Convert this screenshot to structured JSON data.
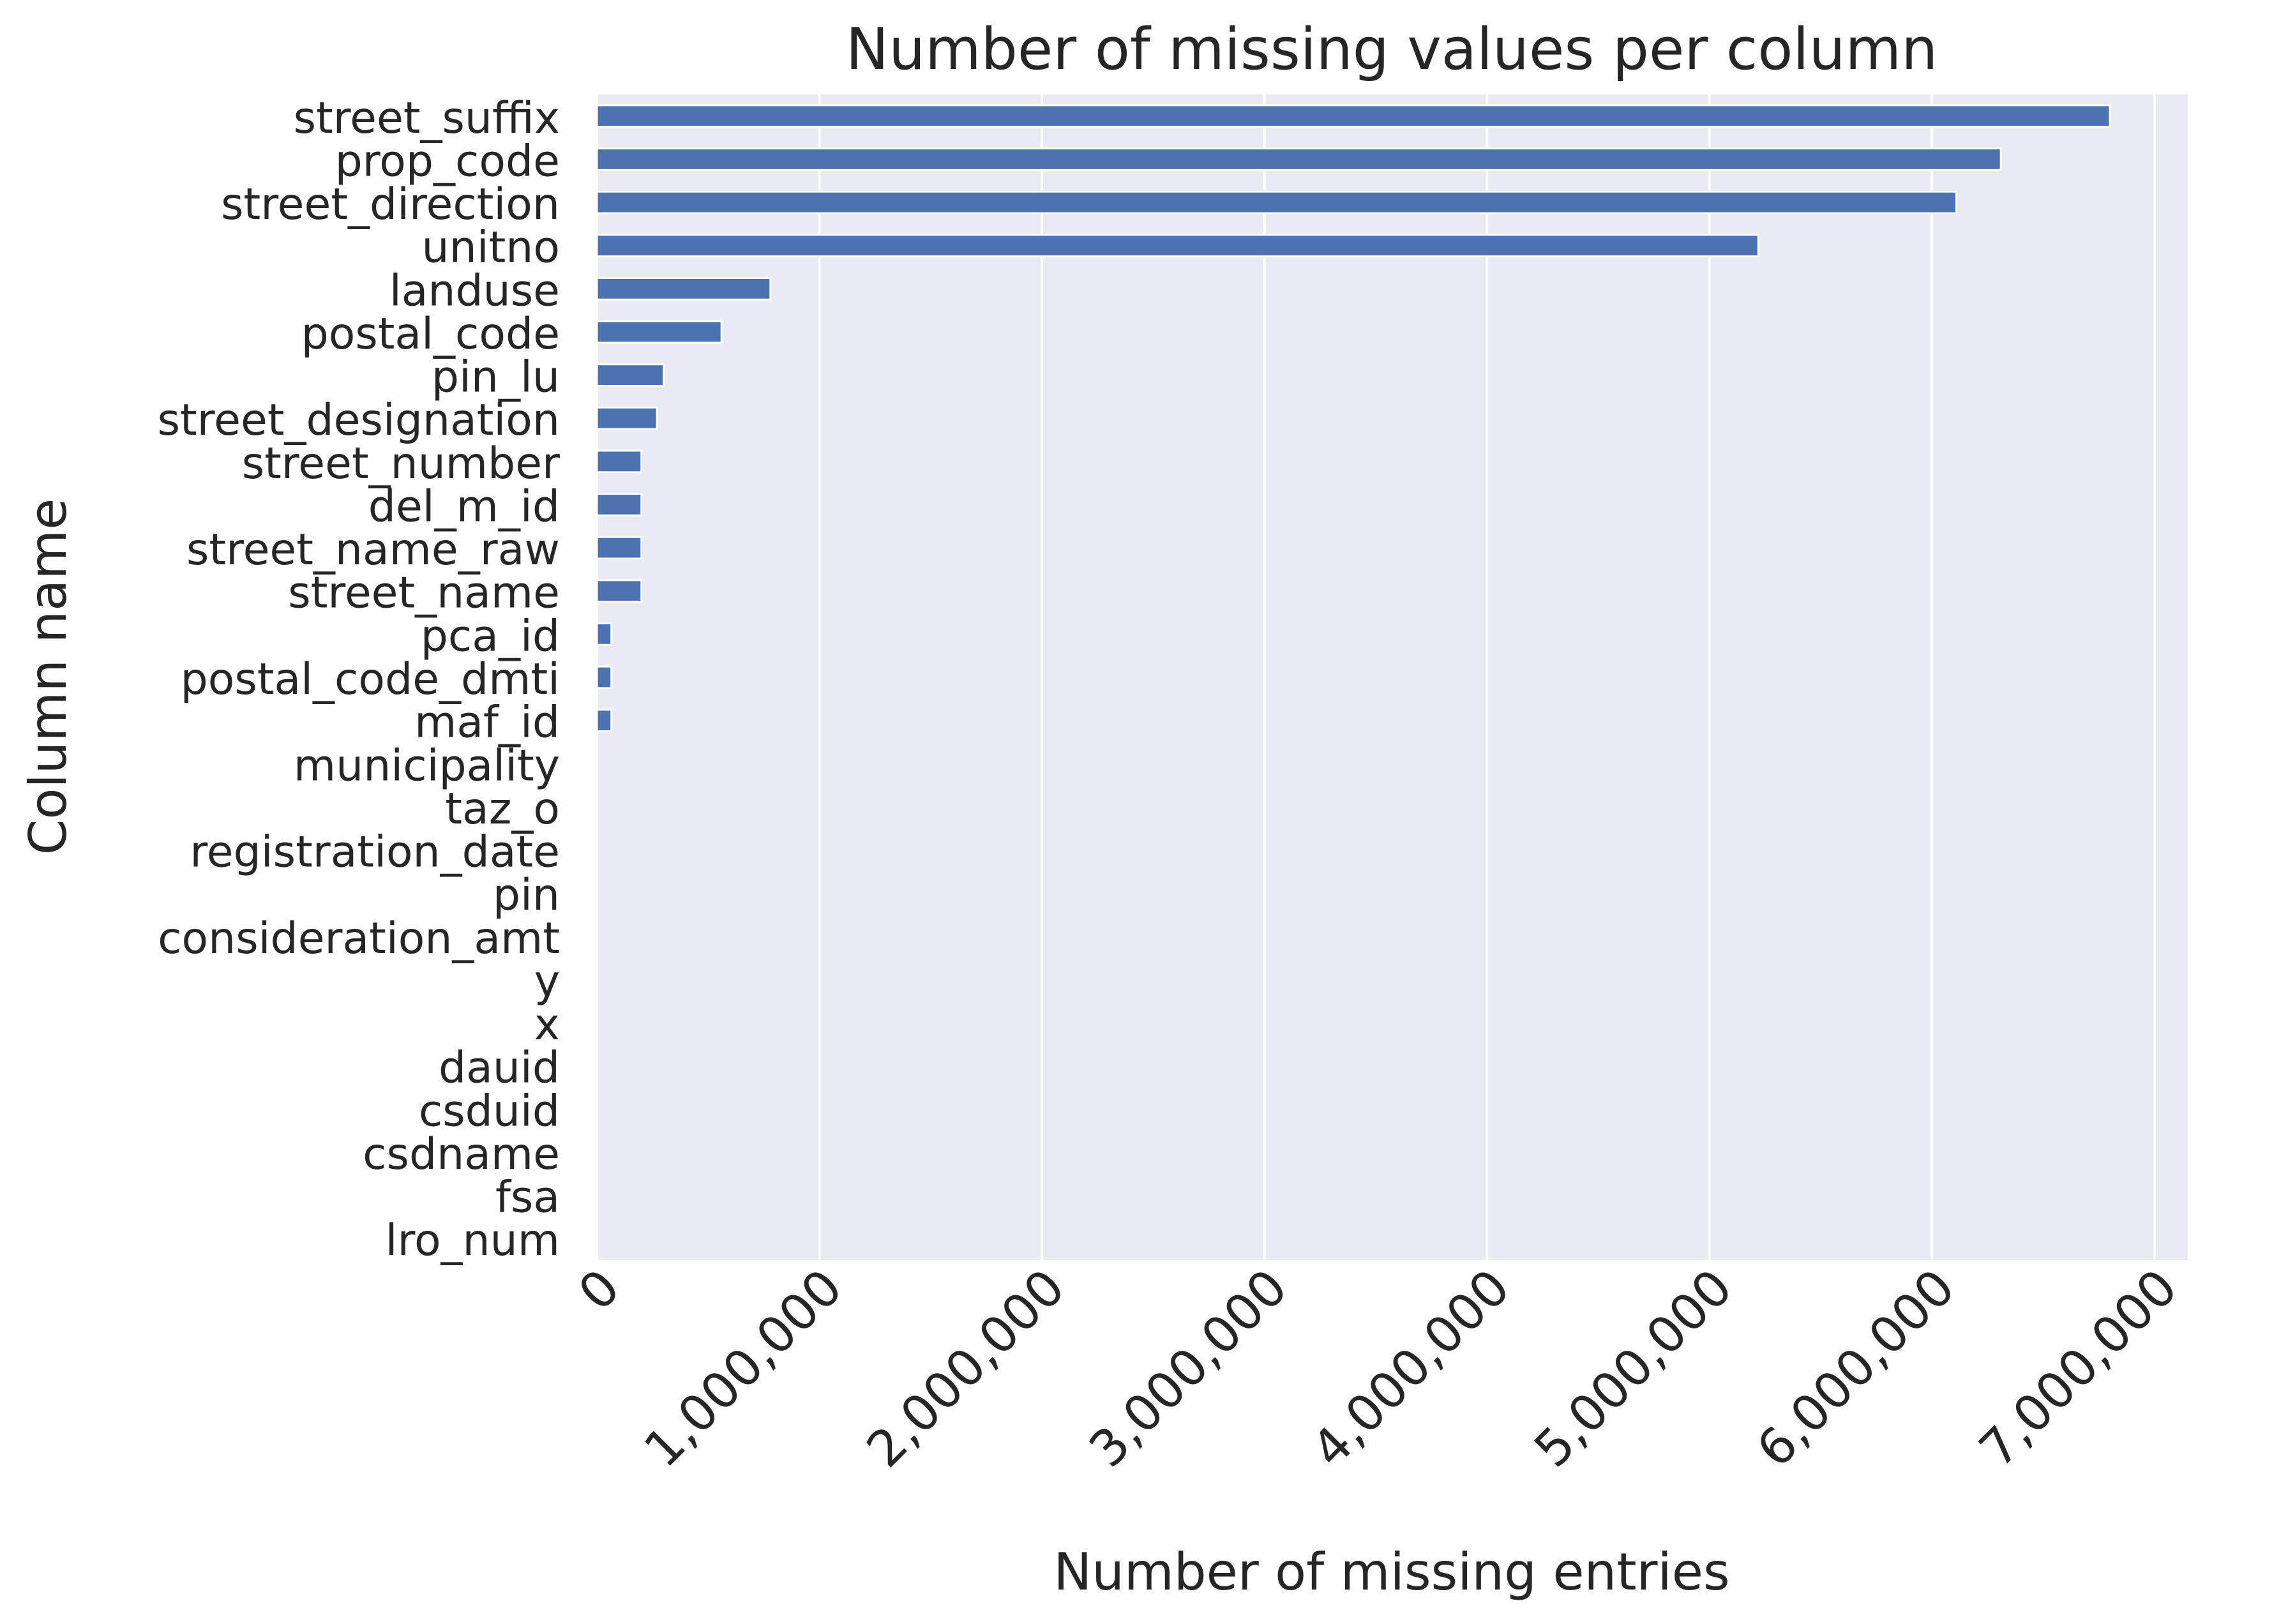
{
  "chart_data": {
    "type": "bar",
    "orientation": "horizontal",
    "title": "Number of missing values per column",
    "xlabel": "Number of missing entries",
    "ylabel": "Column name",
    "xlim": [
      0,
      7150000
    ],
    "x_ticks": [
      0,
      1000000,
      2000000,
      3000000,
      4000000,
      5000000,
      6000000,
      7000000
    ],
    "x_tick_labels": [
      "0",
      "1,000,000",
      "2,000,000",
      "3,000,000",
      "4,000,000",
      "5,000,000",
      "6,000,000",
      "7,000,000"
    ],
    "x_tick_rotation_deg": 45,
    "grid": "vertical",
    "bar_color": "#4c72b0",
    "background_color": "#eaeaf2",
    "categories": [
      "street_suffix",
      "prop_code",
      "street_direction",
      "unitno",
      "landuse",
      "postal_code",
      "pin_lu",
      "street_designation",
      "street_number",
      "del_m_id",
      "street_name_raw",
      "street_name",
      "pca_id",
      "postal_code_dmti",
      "maf_id",
      "municipality",
      "taz_o",
      "registration_date",
      "pin",
      "consideration_amt",
      "y",
      "x",
      "dauid",
      "csduid",
      "csdname",
      "fsa",
      "lro_num"
    ],
    "values": [
      6800000,
      6310000,
      6110000,
      5220000,
      780000,
      560000,
      300000,
      270000,
      200000,
      200000,
      200000,
      200000,
      65000,
      65000,
      65000,
      0,
      0,
      0,
      0,
      0,
      0,
      0,
      0,
      0,
      0,
      0,
      0
    ]
  }
}
